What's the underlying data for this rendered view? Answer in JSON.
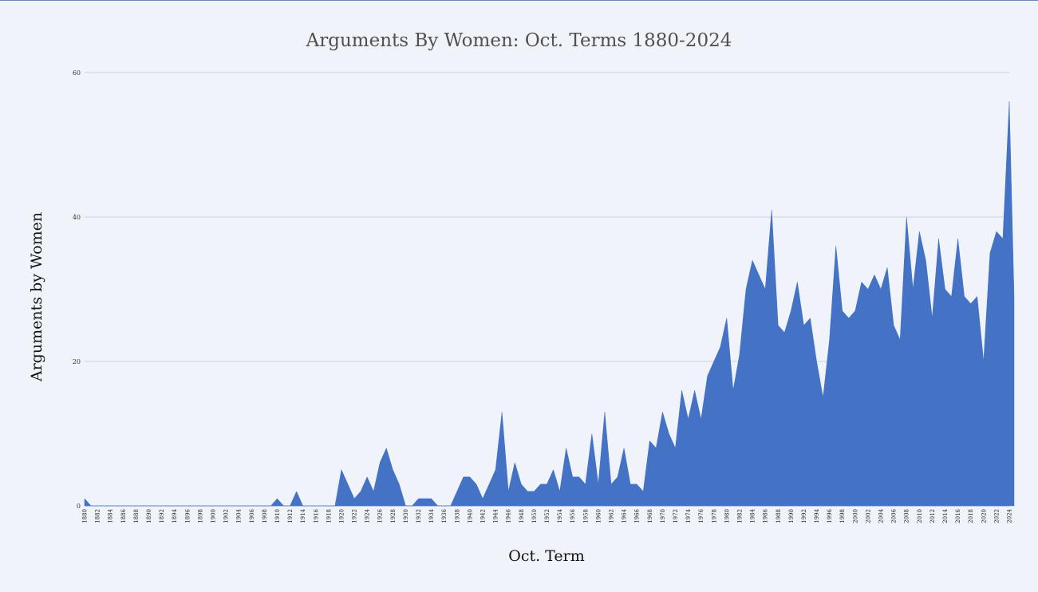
{
  "chart_data": {
    "type": "area",
    "title": "Arguments By Women: Oct. Terms 1880-2024",
    "xlabel": "Oct. Term",
    "ylabel": "Arguments by Women",
    "ylim": [
      0,
      60
    ],
    "yticks": [
      0,
      20,
      40,
      60
    ],
    "xlim": [
      1880,
      2024
    ],
    "xtick_step": 2,
    "grid": "horizontal",
    "color": "#4472c4",
    "series": [
      {
        "x": [
          1880,
          1881,
          1882,
          1883,
          1884,
          1885,
          1886,
          1887,
          1888,
          1889,
          1890,
          1891,
          1892,
          1893,
          1894,
          1895,
          1896,
          1897,
          1898,
          1899,
          1900,
          1901,
          1902,
          1903,
          1904,
          1905,
          1906,
          1907,
          1908,
          1909,
          1910,
          1911,
          1912,
          1913,
          1914,
          1915,
          1916,
          1917,
          1918,
          1919,
          1920,
          1921,
          1922,
          1923,
          1924,
          1925,
          1926,
          1927,
          1928,
          1929,
          1930,
          1931,
          1932,
          1933,
          1934,
          1935,
          1936,
          1937,
          1938,
          1939,
          1940,
          1941,
          1942,
          1943,
          1944,
          1945,
          1946,
          1947,
          1948,
          1949,
          1950,
          1951,
          1952,
          1953,
          1954,
          1955,
          1956,
          1957,
          1958,
          1959,
          1960,
          1961,
          1962,
          1963,
          1964,
          1965,
          1966,
          1967,
          1968,
          1969,
          1970,
          1971,
          1972,
          1973,
          1974,
          1975,
          1976,
          1977,
          1978,
          1979,
          1980,
          1981,
          1982,
          1983,
          1984,
          1985,
          1986,
          1987,
          1988,
          1989,
          1990,
          1991,
          1992,
          1993,
          1994,
          1995,
          1996,
          1997,
          1998,
          1999,
          2000,
          2001,
          2002,
          2003,
          2004,
          2005,
          2006,
          2007,
          2008,
          2009,
          2010,
          2011,
          2012,
          2013,
          2014,
          2015,
          2016,
          2017,
          2018,
          2019,
          2020,
          2021,
          2022,
          2023,
          2024
        ],
        "y": [
          1,
          0,
          0,
          0,
          0,
          0,
          0,
          0,
          0,
          0,
          0,
          0,
          0,
          0,
          0,
          0,
          0,
          0,
          0,
          0,
          0,
          0,
          0,
          0,
          0,
          0,
          0,
          0,
          0,
          0,
          1,
          0,
          0,
          2,
          0,
          0,
          0,
          0,
          0,
          0,
          5,
          3,
          1,
          2,
          4,
          2,
          6,
          8,
          5,
          3,
          0,
          0,
          1,
          1,
          1,
          0,
          0,
          0,
          2,
          4,
          4,
          3,
          1,
          3,
          5,
          13,
          2,
          6,
          3,
          2,
          2,
          3,
          3,
          5,
          2,
          8,
          4,
          4,
          3,
          10,
          3,
          13,
          3,
          4,
          8,
          3,
          3,
          2,
          9,
          8,
          13,
          10,
          8,
          16,
          12,
          16,
          12,
          18,
          20,
          22,
          26,
          16,
          21,
          30,
          34,
          32,
          30,
          41,
          25,
          24,
          27,
          31,
          25,
          26,
          20,
          15,
          23,
          36,
          27,
          26,
          27,
          31,
          30,
          32,
          30,
          33,
          25,
          23,
          40,
          30,
          38,
          34,
          26,
          37,
          30,
          29,
          37,
          29,
          28,
          29,
          20,
          35,
          38,
          37,
          56
        ]
      }
    ],
    "last_point_drop": 29
  }
}
